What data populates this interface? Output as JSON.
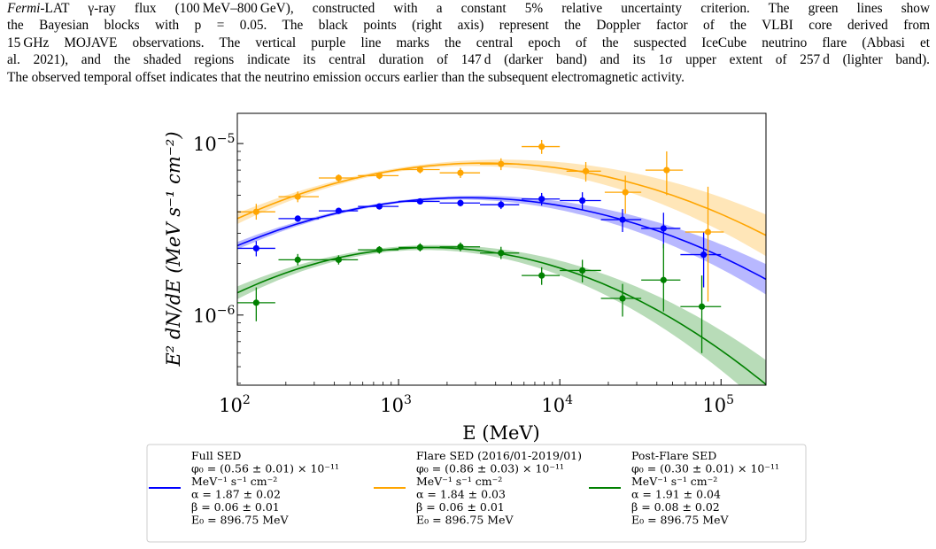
{
  "caption": {
    "lines": [
      {
        "italic": "Fermi",
        "text": "-LAT γ-ray flux (100 MeV–800 GeV), constructed with a constant 5% relative uncertainty criterion. The green lines show"
      },
      {
        "italic": "",
        "text": "the Bayesian blocks with p = 0.05. The black points (right axis) represent the Doppler factor of the VLBI core derived from"
      },
      {
        "italic": "",
        "text": "15 GHz MOJAVE observations. The vertical purple line marks the central epoch of the suspected IceCube neutrino flare (Abbasi et"
      },
      {
        "italic": "",
        "text": "al. 2021), and the shaded regions indicate its central duration of 147 d (darker band) and its 1σ upper extent of 257 d (lighter band)."
      },
      {
        "italic": "",
        "text": "The observed temporal offset indicates that the neutrino emission occurs earlier than the subsequent electromagnetic activity."
      }
    ]
  },
  "chart_data": {
    "type": "scatter",
    "xscale": "log",
    "yscale": "log",
    "xlim": [
      100,
      190000
    ],
    "ylim": [
      3.9e-07,
      1.5e-05
    ],
    "xlabel": "E (MeV)",
    "ylabel": "E² dN/dE (MeV s⁻¹ cm⁻²)",
    "xticks": [
      {
        "value": 100,
        "base": "10",
        "exp": "2"
      },
      {
        "value": 1000,
        "base": "10",
        "exp": "3"
      },
      {
        "value": 10000,
        "base": "10",
        "exp": "4"
      },
      {
        "value": 100000,
        "base": "10",
        "exp": "5"
      }
    ],
    "yticks": [
      {
        "value": 1e-06,
        "base": "10",
        "exp": "−6"
      },
      {
        "value": 1e-05,
        "base": "10",
        "exp": "−5"
      }
    ],
    "grid": false,
    "legend_position": "bottom",
    "series": [
      {
        "name": "Full SED",
        "color": "#0000ff",
        "params": {
          "phi0": 5.6e-12,
          "alpha": 1.87,
          "beta": 0.06,
          "E0": 896.75,
          "band_frac": 0.07
        },
        "points": [
          {
            "x": 131,
            "y": 2.45e-06,
            "xerr": [
              100,
              172
            ],
            "yerr": [
              2.2e-06,
              2.7e-06
            ]
          },
          {
            "x": 237,
            "y": 3.65e-06,
            "xerr": [
              180,
              320
            ],
            "yerr": [
              3.5e-06,
              3.8e-06
            ]
          },
          {
            "x": 425,
            "y": 4.05e-06,
            "xerr": [
              320,
              560
            ],
            "yerr": [
              3.9e-06,
              4.2e-06
            ]
          },
          {
            "x": 760,
            "y": 4.3e-06,
            "xerr": [
              560,
              1000
            ],
            "yerr": [
              4.15e-06,
              4.45e-06
            ]
          },
          {
            "x": 1360,
            "y": 4.6e-06,
            "xerr": [
              1000,
              1800
            ],
            "yerr": [
              4.45e-06,
              4.75e-06
            ]
          },
          {
            "x": 2420,
            "y": 4.5e-06,
            "xerr": [
              1800,
              3200
            ],
            "yerr": [
              4.3e-06,
              4.7e-06
            ]
          },
          {
            "x": 4320,
            "y": 4.4e-06,
            "xerr": [
              3200,
              5600
            ],
            "yerr": [
              4.15e-06,
              4.65e-06
            ]
          },
          {
            "x": 7720,
            "y": 4.75e-06,
            "xerr": [
              5800,
              10000
            ],
            "yerr": [
              4.35e-06,
              5.15e-06
            ]
          },
          {
            "x": 13800,
            "y": 4.65e-06,
            "xerr": [
              10000,
              18000
            ],
            "yerr": [
              4.1e-06,
              5.2e-06
            ]
          },
          {
            "x": 24500,
            "y": 3.6e-06,
            "xerr": [
              18000,
              32000
            ],
            "yerr": [
              3.05e-06,
              4.15e-06
            ]
          },
          {
            "x": 44000,
            "y": 3.2e-06,
            "xerr": [
              32000,
              56000
            ],
            "yerr": [
              2.45e-06,
              3.95e-06
            ]
          },
          {
            "x": 78000,
            "y": 2.25e-06,
            "xerr": [
              56000,
              100000
            ],
            "yerr": [
              1.45e-06,
              3.05e-06
            ]
          }
        ]
      },
      {
        "name": "Flare SED (2016/01-2019/01)",
        "color": "#ffa500",
        "params": {
          "phi0": 8.6e-12,
          "alpha": 1.84,
          "beta": 0.06,
          "E0": 896.75,
          "band_frac": 0.1
        },
        "points": [
          {
            "x": 131,
            "y": 4e-06,
            "xerr": [
              100,
              172
            ],
            "yerr": [
              3.6e-06,
              4.45e-06
            ]
          },
          {
            "x": 237,
            "y": 4.9e-06,
            "xerr": [
              180,
              320
            ],
            "yerr": [
              4.55e-06,
              5.25e-06
            ]
          },
          {
            "x": 425,
            "y": 6.3e-06,
            "xerr": [
              320,
              560
            ],
            "yerr": [
              6e-06,
              6.6e-06
            ]
          },
          {
            "x": 760,
            "y": 6.5e-06,
            "xerr": [
              560,
              1000
            ],
            "yerr": [
              6.2e-06,
              6.8e-06
            ]
          },
          {
            "x": 1360,
            "y": 7.05e-06,
            "xerr": [
              1000,
              1800
            ],
            "yerr": [
              6.7e-06,
              7.4e-06
            ]
          },
          {
            "x": 2420,
            "y": 6.75e-06,
            "xerr": [
              1800,
              3200
            ],
            "yerr": [
              6.3e-06,
              7.2e-06
            ]
          },
          {
            "x": 4320,
            "y": 7.6e-06,
            "xerr": [
              3200,
              5600
            ],
            "yerr": [
              7e-06,
              8.2e-06
            ]
          },
          {
            "x": 7720,
            "y": 9.6e-06,
            "xerr": [
              5800,
              10000
            ],
            "yerr": [
              8.7e-06,
              1.05e-05
            ]
          },
          {
            "x": 14500,
            "y": 6.9e-06,
            "xerr": [
              11000,
              18000
            ],
            "yerr": [
              6e-06,
              7.8e-06
            ]
          },
          {
            "x": 25500,
            "y": 5.2e-06,
            "xerr": [
              19000,
              32000
            ],
            "yerr": [
              3.9e-06,
              6.5e-06
            ]
          },
          {
            "x": 46000,
            "y": 7e-06,
            "xerr": [
              34000,
              58000
            ],
            "yerr": [
              5e-06,
              9e-06
            ]
          },
          {
            "x": 83000,
            "y": 3.05e-06,
            "xerr": [
              60000,
              104000
            ],
            "yerr": [
              1.2e-06,
              5.6e-06
            ]
          }
        ]
      },
      {
        "name": "Post-Flare SED",
        "color": "#008000",
        "params": {
          "phi0": 3e-12,
          "alpha": 1.91,
          "beta": 0.08,
          "E0": 896.75,
          "band_frac": 0.12
        },
        "points": [
          {
            "x": 131,
            "y": 1.18e-06,
            "xerr": [
              100,
              172
            ],
            "yerr": [
              9.2e-07,
              1.45e-06
            ]
          },
          {
            "x": 237,
            "y": 2.1e-06,
            "xerr": [
              180,
              320
            ],
            "yerr": [
              1.95e-06,
              2.27e-06
            ]
          },
          {
            "x": 425,
            "y": 2.1e-06,
            "xerr": [
              320,
              560
            ],
            "yerr": [
              1.97e-06,
              2.23e-06
            ]
          },
          {
            "x": 760,
            "y": 2.4e-06,
            "xerr": [
              560,
              1000
            ],
            "yerr": [
              2.28e-06,
              2.52e-06
            ]
          },
          {
            "x": 1360,
            "y": 2.48e-06,
            "xerr": [
              1000,
              1800
            ],
            "yerr": [
              2.35e-06,
              2.62e-06
            ]
          },
          {
            "x": 2420,
            "y": 2.5e-06,
            "xerr": [
              1800,
              3200
            ],
            "yerr": [
              2.35e-06,
              2.65e-06
            ]
          },
          {
            "x": 4320,
            "y": 2.3e-06,
            "xerr": [
              3200,
              5600
            ],
            "yerr": [
              2.12e-06,
              2.5e-06
            ]
          },
          {
            "x": 7720,
            "y": 1.7e-06,
            "xerr": [
              5800,
              10000
            ],
            "yerr": [
              1.5e-06,
              1.9e-06
            ]
          },
          {
            "x": 13800,
            "y": 1.82e-06,
            "xerr": [
              10000,
              18000
            ],
            "yerr": [
              1.55e-06,
              2.1e-06
            ]
          },
          {
            "x": 24500,
            "y": 1.25e-06,
            "xerr": [
              18000,
              32000
            ],
            "yerr": [
              9.8e-07,
              1.52e-06
            ]
          },
          {
            "x": 44000,
            "y": 1.6e-06,
            "xerr": [
              32000,
              56000
            ],
            "yerr": [
              1.05e-06,
              2.6e-06
            ]
          },
          {
            "x": 76000,
            "y": 1.12e-06,
            "xerr": [
              56000,
              100000
            ],
            "yerr": [
              6e-07,
              1.7e-06
            ]
          }
        ]
      }
    ],
    "legend": [
      {
        "name": "Full SED",
        "color": "#0000ff",
        "phi": "φ₀ = (0.56 ± 0.01) × 10⁻¹¹",
        "units": "MeV⁻¹ s⁻¹ cm⁻²",
        "alpha": "α = 1.87 ± 0.02",
        "beta": "β = 0.06 ± 0.01",
        "e0": "E₀ = 896.75 MeV"
      },
      {
        "name": "Flare SED (2016/01-2019/01)",
        "color": "#ffa500",
        "phi": "φ₀ = (0.86 ± 0.03) × 10⁻¹¹",
        "units": "MeV⁻¹ s⁻¹ cm⁻²",
        "alpha": "α = 1.84 ± 0.03",
        "beta": "β = 0.06 ± 0.01",
        "e0": "E₀ = 896.75 MeV"
      },
      {
        "name": "Post-Flare SED",
        "color": "#008000",
        "phi": "φ₀ = (0.30 ± 0.01) × 10⁻¹¹",
        "units": "MeV⁻¹ s⁻¹ cm⁻²",
        "alpha": "α = 1.91 ± 0.04",
        "beta": "β = 0.08 ± 0.02",
        "e0": "E₀ = 896.75 MeV"
      }
    ]
  }
}
